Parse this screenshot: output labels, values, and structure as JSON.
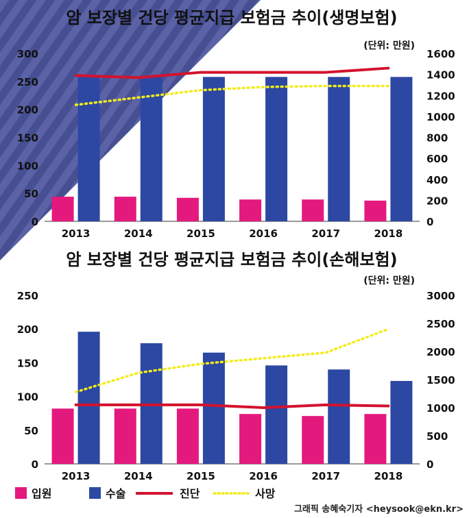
{
  "colors": {
    "inpatient": "#e4197d",
    "surgery": "#2c48a3",
    "diagnosis": "#d3132e",
    "death": "#f2ec1b",
    "photo_overlay": "#5b62a6"
  },
  "chart_data": [
    {
      "type": "bar",
      "title": "암 보장별 건당 평균지급 보험금 추이(생명보험)",
      "unit": "(단위: 만원)",
      "categories": [
        "2013",
        "2014",
        "2015",
        "2016",
        "2017",
        "2018"
      ],
      "left_axis": {
        "ylim": [
          0,
          300
        ],
        "ticks": [
          "0",
          "50",
          "100",
          "150",
          "200",
          "250",
          "300"
        ]
      },
      "right_axis": {
        "ylim": [
          0,
          1600
        ],
        "ticks": [
          "0",
          "200",
          "400",
          "600",
          "800",
          "1000",
          "1200",
          "1400",
          "1600"
        ]
      },
      "series": [
        {
          "name": "입원",
          "kind": "bar",
          "axis": "left",
          "color_key": "inpatient",
          "values": [
            44,
            44,
            42,
            39,
            39,
            37
          ]
        },
        {
          "name": "수술",
          "kind": "bar",
          "axis": "left",
          "color_key": "surgery",
          "values": [
            258,
            258,
            258,
            258,
            258,
            258
          ]
        },
        {
          "name": "진단",
          "kind": "line",
          "axis": "right",
          "color_key": "diagnosis",
          "values": [
            1390,
            1370,
            1420,
            1420,
            1420,
            1460
          ]
        },
        {
          "name": "사망",
          "kind": "dotted",
          "axis": "right",
          "color_key": "death",
          "values": [
            1110,
            1180,
            1250,
            1280,
            1290,
            1290
          ]
        }
      ]
    },
    {
      "type": "bar",
      "title": "암 보장별 건당 평균지급 보험금 추이(손해보험)",
      "unit": "(단위: 만원)",
      "categories": [
        "2013",
        "2014",
        "2015",
        "2016",
        "2017",
        "2018"
      ],
      "left_axis": {
        "ylim": [
          0,
          250
        ],
        "ticks": [
          "0",
          "50",
          "100",
          "150",
          "200",
          "250"
        ]
      },
      "right_axis": {
        "ylim": [
          0,
          3000
        ],
        "ticks": [
          "0",
          "500",
          "1000",
          "1500",
          "2000",
          "2500",
          "3000"
        ]
      },
      "series": [
        {
          "name": "입원",
          "kind": "bar",
          "axis": "left",
          "color_key": "inpatient",
          "values": [
            82,
            82,
            82,
            74,
            71,
            74
          ]
        },
        {
          "name": "수술",
          "kind": "bar",
          "axis": "left",
          "color_key": "surgery",
          "values": [
            196,
            179,
            165,
            146,
            140,
            123
          ]
        },
        {
          "name": "진단",
          "kind": "line",
          "axis": "right",
          "color_key": "diagnosis",
          "values": [
            1050,
            1050,
            1050,
            1000,
            1050,
            1030
          ]
        },
        {
          "name": "사망",
          "kind": "dotted",
          "axis": "right",
          "color_key": "death",
          "values": [
            1280,
            1620,
            1780,
            1880,
            1980,
            2400
          ]
        }
      ]
    }
  ],
  "legend": [
    {
      "label": "입원",
      "kind": "box",
      "color_key": "inpatient"
    },
    {
      "label": "수술",
      "kind": "box",
      "color_key": "surgery"
    },
    {
      "label": "진단",
      "kind": "line",
      "color_key": "diagnosis"
    },
    {
      "label": "사망",
      "kind": "dotted",
      "color_key": "death"
    }
  ],
  "credit": "그래픽 송혜숙기자 <heysook@ekn.kr>"
}
